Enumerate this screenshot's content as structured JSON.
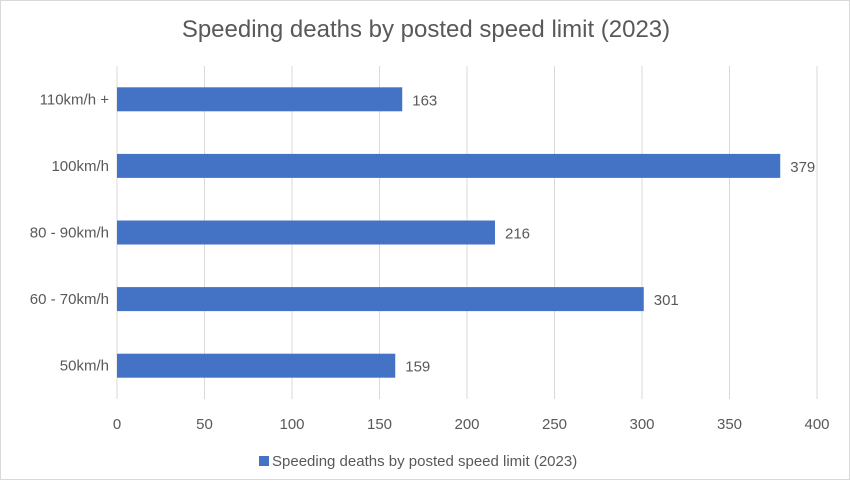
{
  "chart_data": {
    "type": "bar",
    "orientation": "horizontal",
    "title": "Speeding deaths by posted speed limit (2023)",
    "categories": [
      "110km/h +",
      "100km/h",
      "80 - 90km/h",
      "60 - 70km/h",
      "50km/h"
    ],
    "series": [
      {
        "name": "Speeding deaths by posted speed limit (2023)",
        "values": [
          163,
          379,
          216,
          301,
          159
        ],
        "color": "#4472C4"
      }
    ],
    "xlim": [
      0,
      400
    ],
    "xticks": [
      0,
      50,
      100,
      150,
      200,
      250,
      300,
      350,
      400
    ],
    "xlabel": "",
    "ylabel": "",
    "grid": "vertical",
    "legend": "bottom",
    "data_labels": true
  }
}
